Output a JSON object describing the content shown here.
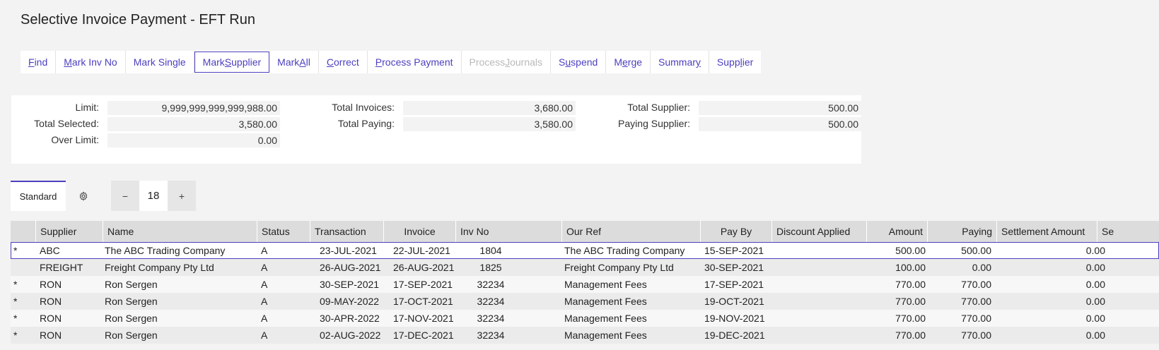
{
  "title": "Selective Invoice Payment - EFT Run",
  "toolbar": [
    {
      "pre": "",
      "u": "F",
      "post": "ind",
      "state": "normal"
    },
    {
      "pre": "",
      "u": "M",
      "post": "ark Inv No",
      "state": "normal"
    },
    {
      "pre": "Mark Sin",
      "u": "g",
      "post": "le",
      "state": "normal"
    },
    {
      "pre": "Mark ",
      "u": "S",
      "post": "upplier",
      "state": "active"
    },
    {
      "pre": "Mark ",
      "u": "A",
      "post": "ll",
      "state": "normal"
    },
    {
      "pre": "",
      "u": "C",
      "post": "orrect",
      "state": "normal"
    },
    {
      "pre": "",
      "u": "P",
      "post": "rocess Payment",
      "state": "normal"
    },
    {
      "pre": "Process ",
      "u": "J",
      "post": "ournals",
      "state": "disabled"
    },
    {
      "pre": "S",
      "u": "u",
      "post": "spend",
      "state": "normal"
    },
    {
      "pre": "M",
      "u": "e",
      "post": "rge",
      "state": "normal"
    },
    {
      "pre": "Summar",
      "u": "y",
      "post": "",
      "state": "normal"
    },
    {
      "pre": "Supp",
      "u": "l",
      "post": "ier",
      "state": "normal"
    }
  ],
  "summary": {
    "limit_label": "Limit:",
    "limit": "9,999,999,999,999,988.00",
    "total_selected_label": "Total Selected:",
    "total_selected": "3,580.00",
    "over_limit_label": "Over Limit:",
    "over_limit": "0.00",
    "total_invoices_label": "Total Invoices:",
    "total_invoices": "3,680.00",
    "total_paying_label": "Total Paying:",
    "total_paying": "3,580.00",
    "total_supplier_label": "Total Supplier:",
    "total_supplier": "500.00",
    "paying_supplier_label": "Paying Supplier:",
    "paying_supplier": "500.00"
  },
  "view": {
    "tab_label": "Standard",
    "gear_icon": "gear-icon",
    "minus": "−",
    "page_size": "18",
    "plus": "+"
  },
  "grid": {
    "columns": [
      "",
      "Supplier",
      "Name",
      "Status",
      "Transaction",
      "Invoice",
      "Inv No",
      "Our Ref",
      "Pay By",
      "Discount Applied",
      "Amount",
      "Paying",
      "Settlement Amount",
      "Se"
    ],
    "rows": [
      [
        "*",
        "ABC",
        "The ABC Trading Company",
        "A",
        "23-JUL-2021",
        "22-JUL-2021",
        "1804",
        "The ABC Trading Company",
        "15-SEP-2021",
        "",
        "500.00",
        "500.00",
        "0.00"
      ],
      [
        "",
        "FREIGHT",
        "Freight Company Pty Ltd",
        "A",
        "26-AUG-2021",
        "26-AUG-2021",
        "1825",
        "Freight Company Pty Ltd",
        "30-SEP-2021",
        "",
        "100.00",
        "0.00",
        "0.00"
      ],
      [
        "*",
        "RON",
        "Ron Sergen",
        "A",
        "30-SEP-2021",
        "17-SEP-2021",
        "32234",
        "Management Fees",
        "17-SEP-2021",
        "",
        "770.00",
        "770.00",
        "0.00"
      ],
      [
        "*",
        "RON",
        "Ron Sergen",
        "A",
        "09-MAY-2022",
        "17-OCT-2021",
        "32234",
        "Management Fees",
        "19-OCT-2021",
        "",
        "770.00",
        "770.00",
        "0.00"
      ],
      [
        "*",
        "RON",
        "Ron Sergen",
        "A",
        "30-APR-2022",
        "17-NOV-2021",
        "32234",
        "Management Fees",
        "19-NOV-2021",
        "",
        "770.00",
        "770.00",
        "0.00"
      ],
      [
        "*",
        "RON",
        "Ron Sergen",
        "A",
        "02-AUG-2022",
        "17-DEC-2021",
        "32234",
        "Management Fees",
        "19-DEC-2021",
        "",
        "770.00",
        "770.00",
        "0.00"
      ]
    ]
  }
}
